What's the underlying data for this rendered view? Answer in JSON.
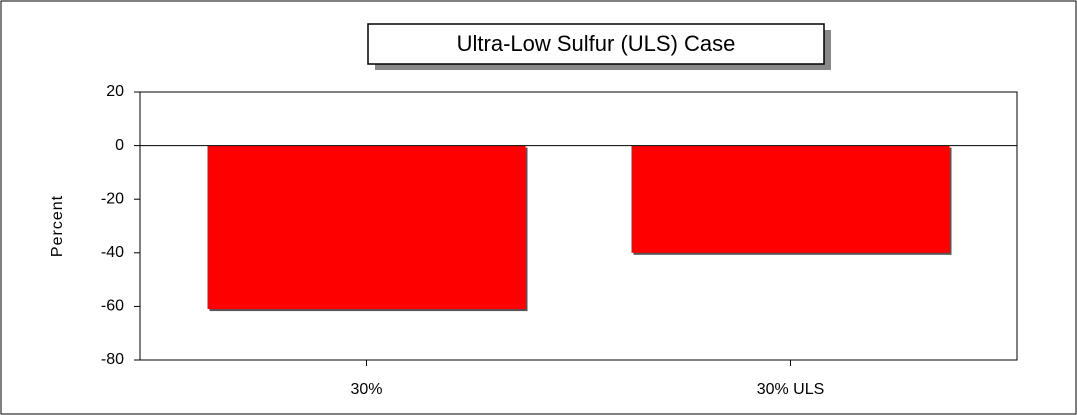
{
  "chart_data": {
    "type": "bar",
    "title": "Ultra-Low Sulfur (ULS) Case",
    "y_label": "Percent",
    "categories": [
      "30%",
      "30% ULS"
    ],
    "values": [
      -61,
      -40
    ],
    "color": "#ff0000",
    "ylim": [
      -80,
      20
    ],
    "yticks": [
      -80,
      -60,
      -40,
      -20,
      0,
      20
    ]
  }
}
